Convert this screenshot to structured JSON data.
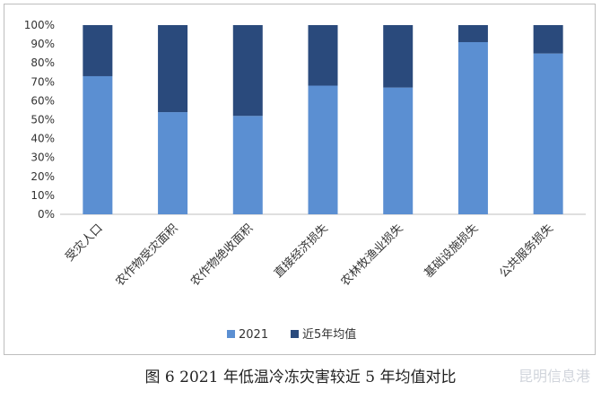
{
  "chart_data": {
    "type": "bar",
    "stacked": true,
    "categories": [
      "受灾人口",
      "农作物受灾面积",
      "农作物绝收面积",
      "直接经济损失",
      "农林牧渔业损失",
      "基础设施损失",
      "公共服务损失"
    ],
    "series": [
      {
        "name": "2021",
        "values": [
          73,
          54,
          52,
          68,
          67,
          91,
          85
        ],
        "color": "#5b8fd2"
      },
      {
        "name": "近5年均值",
        "values": [
          27,
          46,
          48,
          32,
          33,
          9,
          15
        ],
        "color": "#2a4a7c"
      }
    ],
    "ylim": [
      0,
      100
    ],
    "yticks": [
      "0%",
      "10%",
      "20%",
      "30%",
      "40%",
      "50%",
      "60%",
      "70%",
      "80%",
      "90%",
      "100%"
    ],
    "grid": false,
    "legend": "bottom"
  },
  "caption": "图 6 2021 年低温冷冻灾害较近 5 年均值对比",
  "watermark": "昆明信息港"
}
